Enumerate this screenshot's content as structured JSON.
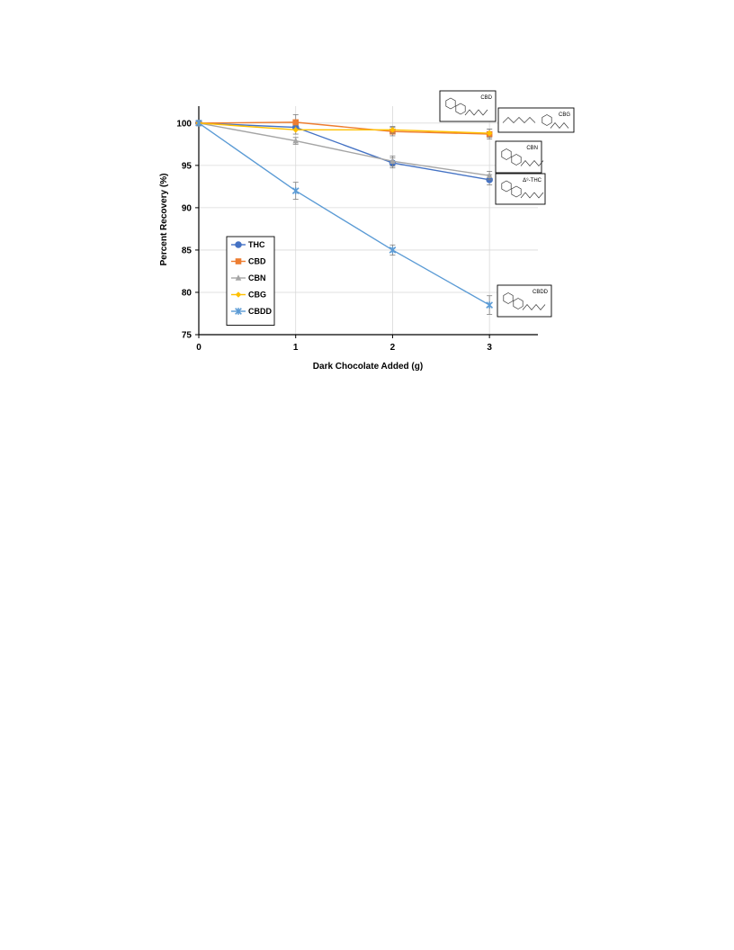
{
  "chart_data": {
    "type": "line",
    "xlabel": "Dark Chocolate Added (g)",
    "ylabel": "Percent Recovery (%)",
    "x": [
      0,
      1,
      2,
      3
    ],
    "xlim": [
      0,
      3.5
    ],
    "ylim": [
      75,
      102
    ],
    "yticks": [
      75,
      80,
      85,
      90,
      95,
      100
    ],
    "xticks": [
      0,
      1,
      2,
      3
    ],
    "grid": true,
    "legend_position": "lower-left",
    "series": [
      {
        "name": "THC",
        "values": [
          100,
          99.5,
          95.3,
          93.3
        ],
        "errors": [
          0.3,
          0.3,
          0.6,
          0.6
        ],
        "color": "#4472C4",
        "marker": "circle"
      },
      {
        "name": "CBD",
        "values": [
          100,
          100.1,
          99.0,
          98.7
        ],
        "errors": [
          0.3,
          0.9,
          0.5,
          0.6
        ],
        "color": "#ED7D31",
        "marker": "square"
      },
      {
        "name": "CBN",
        "values": [
          100,
          97.9,
          95.5,
          93.8
        ],
        "errors": [
          0.3,
          0.4,
          0.6,
          0.5
        ],
        "color": "#A5A5A5",
        "marker": "triangle"
      },
      {
        "name": "CBG",
        "values": [
          100,
          99.2,
          99.2,
          98.8
        ],
        "errors": [
          0.3,
          0.5,
          0.4,
          0.5
        ],
        "color": "#FFC000",
        "marker": "diamond"
      },
      {
        "name": "CBDD",
        "values": [
          100,
          92.0,
          85.0,
          78.5
        ],
        "errors": [
          0.3,
          1.0,
          0.6,
          1.1
        ],
        "color": "#5B9BD5",
        "marker": "star"
      }
    ],
    "annotations": [
      {
        "label": "CBD",
        "series": "CBD"
      },
      {
        "label": "CBG",
        "series": "CBG"
      },
      {
        "label": "CBN",
        "series": "CBN"
      },
      {
        "label": "Δ⁹-THC",
        "series": "THC"
      },
      {
        "label": "CBDD",
        "series": "CBDD"
      }
    ]
  }
}
